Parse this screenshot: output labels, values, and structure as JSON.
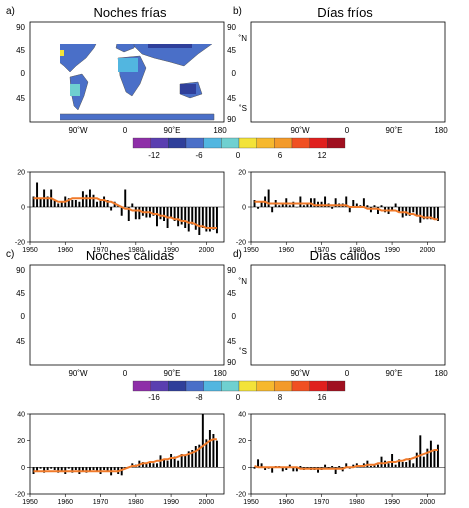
{
  "chart_data": [
    {
      "panel": "a)",
      "title": "Noches frías",
      "type": "bar",
      "x": [
        1951,
        1952,
        1953,
        1954,
        1955,
        1956,
        1957,
        1958,
        1959,
        1960,
        1961,
        1962,
        1963,
        1964,
        1965,
        1966,
        1967,
        1968,
        1969,
        1970,
        1971,
        1972,
        1973,
        1974,
        1975,
        1976,
        1977,
        1978,
        1979,
        1980,
        1981,
        1982,
        1983,
        1984,
        1985,
        1986,
        1987,
        1988,
        1989,
        1990,
        1991,
        1992,
        1993,
        1994,
        1995,
        1996,
        1997,
        1998,
        1999,
        2000,
        2001,
        2002,
        2003
      ],
      "values": [
        6,
        14,
        5,
        10,
        6,
        10,
        4,
        2,
        3,
        6,
        5,
        4,
        4,
        3,
        9,
        7,
        10,
        7,
        3,
        4,
        6,
        4,
        -2,
        3,
        1,
        -5,
        10,
        -8,
        2,
        -7,
        -7,
        -5,
        -6,
        -6,
        -5,
        -11,
        -7,
        -8,
        -12,
        -6,
        -8,
        -11,
        -10,
        -12,
        -14,
        -10,
        -13,
        -16,
        -12,
        -14,
        -14,
        -13,
        -15
      ],
      "trend": [
        5,
        5,
        5,
        5,
        5,
        5,
        4,
        3,
        3,
        3,
        4,
        5,
        5,
        5,
        5,
        5,
        5,
        5,
        5,
        4,
        4,
        3,
        3,
        2,
        1,
        0,
        -1,
        -1,
        -2,
        -2,
        -2,
        -3,
        -3,
        -3,
        -4,
        -4,
        -5,
        -5,
        -6,
        -6,
        -7,
        -7,
        -8,
        -8,
        -9,
        -9,
        -10,
        -11,
        -11,
        -12,
        -12,
        -12,
        -12
      ],
      "xlim": [
        1950,
        2005
      ],
      "ylim": [
        -20,
        20
      ],
      "yticks": [
        -20,
        0,
        20
      ],
      "xticks": [
        1950,
        1960,
        1970,
        1980,
        1990,
        2000
      ]
    },
    {
      "panel": "b)",
      "title": "Días fríos",
      "type": "bar",
      "x": [
        1951,
        1952,
        1953,
        1954,
        1955,
        1956,
        1957,
        1958,
        1959,
        1960,
        1961,
        1962,
        1963,
        1964,
        1965,
        1966,
        1967,
        1968,
        1969,
        1970,
        1971,
        1972,
        1973,
        1974,
        1975,
        1976,
        1977,
        1978,
        1979,
        1980,
        1981,
        1982,
        1983,
        1984,
        1985,
        1986,
        1987,
        1988,
        1989,
        1990,
        1991,
        1992,
        1993,
        1994,
        1995,
        1996,
        1997,
        1998,
        1999,
        2000,
        2001,
        2002,
        2003
      ],
      "values": [
        4,
        -1,
        3,
        6,
        10,
        -3,
        4,
        1,
        2,
        5,
        1,
        3,
        0,
        6,
        1,
        2,
        5,
        5,
        3,
        3,
        6,
        2,
        -1,
        5,
        2,
        2,
        6,
        -3,
        4,
        2,
        1,
        5,
        1,
        -3,
        1,
        -4,
        1,
        -3,
        -4,
        -2,
        2,
        -3,
        -6,
        -5,
        -5,
        -3,
        -5,
        -9,
        -7,
        -7,
        -7,
        -7,
        -8
      ],
      "trend": [
        3,
        3,
        3,
        3,
        2,
        2,
        2,
        2,
        2,
        2,
        2,
        2,
        2,
        2,
        2,
        2,
        2,
        1,
        1,
        1,
        1,
        1,
        1,
        1,
        1,
        1,
        1,
        0,
        0,
        0,
        0,
        0,
        -1,
        -1,
        -1,
        -1,
        -2,
        -2,
        -2,
        -2,
        -2,
        -3,
        -3,
        -3,
        -4,
        -4,
        -5,
        -5,
        -6,
        -6,
        -6,
        -7,
        -7
      ],
      "xlim": [
        1950,
        2005
      ],
      "ylim": [
        -20,
        20
      ],
      "yticks": [
        -20,
        0,
        20
      ],
      "xticks": [
        1950,
        1960,
        1970,
        1980,
        1990,
        2000
      ]
    },
    {
      "panel": "c)",
      "title": "Noches cálidas",
      "type": "bar",
      "x": [
        1951,
        1952,
        1953,
        1954,
        1955,
        1956,
        1957,
        1958,
        1959,
        1960,
        1961,
        1962,
        1963,
        1964,
        1965,
        1966,
        1967,
        1968,
        1969,
        1970,
        1971,
        1972,
        1973,
        1974,
        1975,
        1976,
        1977,
        1978,
        1979,
        1980,
        1981,
        1982,
        1983,
        1984,
        1985,
        1986,
        1987,
        1988,
        1989,
        1990,
        1991,
        1992,
        1993,
        1994,
        1995,
        1996,
        1997,
        1998,
        1999,
        2000,
        2001,
        2002,
        2003
      ],
      "values": [
        -5,
        -3,
        -1,
        -4,
        -2,
        -1,
        -2,
        -4,
        -3,
        -5,
        -1,
        -4,
        -2,
        -5,
        -3,
        -4,
        -3,
        -2,
        -3,
        -5,
        -2,
        -3,
        -6,
        -2,
        -5,
        -6,
        -1,
        0,
        3,
        2,
        5,
        4,
        3,
        4,
        3,
        3,
        9,
        6,
        5,
        10,
        8,
        5,
        10,
        9,
        12,
        13,
        16,
        17,
        40,
        21,
        28,
        25,
        20
      ],
      "trend": [
        -3,
        -3,
        -3,
        -3,
        -3,
        -3,
        -3,
        -3,
        -3,
        -3,
        -3,
        -3,
        -3,
        -3,
        -3,
        -3,
        -3,
        -3,
        -3,
        -3,
        -3,
        -3,
        -3,
        -3,
        -3,
        -2,
        -1,
        0,
        1,
        1,
        2,
        3,
        3,
        4,
        4,
        5,
        5,
        6,
        6,
        7,
        7,
        8,
        9,
        9,
        10,
        11,
        12,
        14,
        16,
        18,
        20,
        21,
        21
      ],
      "xlim": [
        1950,
        2005
      ],
      "ylim": [
        -20,
        40
      ],
      "yticks": [
        -20,
        0,
        20,
        40
      ],
      "xticks": [
        1950,
        1960,
        1970,
        1980,
        1990,
        2000
      ]
    },
    {
      "panel": "d)",
      "title": "Días cálidos",
      "type": "bar",
      "x": [
        1951,
        1952,
        1953,
        1954,
        1955,
        1956,
        1957,
        1958,
        1959,
        1960,
        1961,
        1962,
        1963,
        1964,
        1965,
        1966,
        1967,
        1968,
        1969,
        1970,
        1971,
        1972,
        1973,
        1974,
        1975,
        1976,
        1977,
        1978,
        1979,
        1980,
        1981,
        1982,
        1983,
        1984,
        1985,
        1986,
        1987,
        1988,
        1989,
        1990,
        1991,
        1992,
        1993,
        1994,
        1995,
        1996,
        1997,
        1998,
        1999,
        2000,
        2001,
        2002,
        2003
      ],
      "values": [
        -1,
        6,
        3,
        -2,
        -1,
        -4,
        1,
        1,
        -3,
        -2,
        2,
        -3,
        -3,
        1,
        -2,
        -1,
        -2,
        -2,
        -4,
        -2,
        2,
        -1,
        1,
        -5,
        1,
        -3,
        3,
        -1,
        2,
        3,
        1,
        3,
        5,
        1,
        2,
        2,
        8,
        5,
        3,
        10,
        2,
        6,
        4,
        4,
        7,
        3,
        11,
        24,
        8,
        14,
        20,
        13,
        17
      ],
      "trend": [
        1,
        0,
        0,
        0,
        0,
        0,
        0,
        0,
        0,
        0,
        0,
        0,
        0,
        -1,
        -1,
        -1,
        -1,
        -1,
        -1,
        -1,
        -1,
        -1,
        -1,
        -1,
        -1,
        -1,
        0,
        0,
        0,
        1,
        1,
        1,
        2,
        2,
        2,
        3,
        3,
        3,
        4,
        4,
        4,
        5,
        5,
        6,
        6,
        7,
        8,
        9,
        10,
        11,
        12,
        13,
        13
      ],
      "xlim": [
        1950,
        2005
      ],
      "ylim": [
        -20,
        40
      ],
      "yticks": [
        -20,
        0,
        20,
        40
      ],
      "xticks": [
        1950,
        1960,
        1970,
        1980,
        1990,
        2000
      ]
    }
  ],
  "maps": {
    "lon_labels": [
      "90˚W",
      "0",
      "90˚E",
      "180"
    ],
    "lat_labels_left": [
      "90",
      "45",
      "0",
      "45"
    ],
    "lat_labels_right": [
      "90",
      "˚N",
      "45",
      "0",
      "45",
      "˚S",
      "90"
    ],
    "lat_labels_right_top": [
      "˚N",
      "45",
      "0",
      "45",
      "˚S",
      "90"
    ],
    "colors": {
      "land_outline": "#555555",
      "purple": "#8e2fa8",
      "dark_blue": "#2f3f9a",
      "mid_blue": "#4a6fc8",
      "light_blue": "#52b6e0",
      "cyan": "#6fd0d0",
      "yellow": "#f3e339",
      "orange": "#f39a2a",
      "red_orange": "#f05022",
      "red": "#e0201e",
      "dark_red": "#a01020"
    }
  },
  "colorbar_top": {
    "labels": [
      "-12",
      "-6",
      "0",
      "6",
      "12"
    ],
    "colors": [
      "#8e2fa8",
      "#5a3fb0",
      "#2f3f9a",
      "#4a6fc8",
      "#52b6e0",
      "#6fd0d0",
      "#f3e339",
      "#f6b82e",
      "#f39a2a",
      "#f05022",
      "#e0201e",
      "#a01020"
    ]
  },
  "colorbar_bottom": {
    "labels": [
      "-16",
      "-8",
      "0",
      "8",
      "16"
    ],
    "colors": [
      "#8e2fa8",
      "#5a3fb0",
      "#2f3f9a",
      "#4a6fc8",
      "#52b6e0",
      "#6fd0d0",
      "#f3e339",
      "#f6b82e",
      "#f39a2a",
      "#f05022",
      "#e0201e",
      "#a01020"
    ]
  },
  "style": {
    "bar_color": "#000000",
    "trend_color": "#f07a2a"
  }
}
